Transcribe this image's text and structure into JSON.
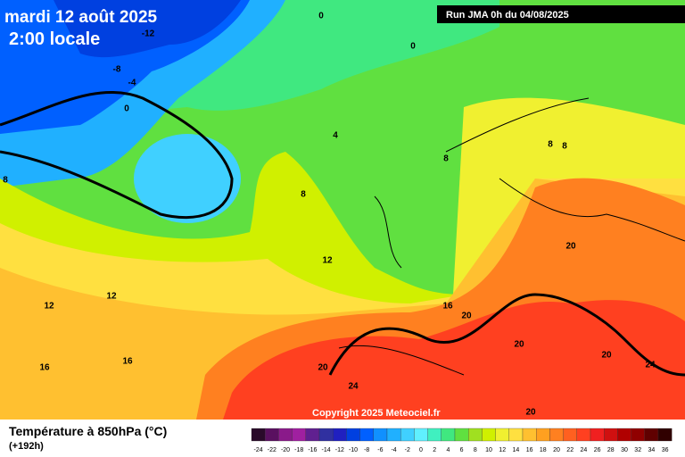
{
  "header": {
    "title": "mardi 12 août 2025",
    "time": "2:00 locale",
    "run": "Run JMA 0h du 04/08/2025",
    "copyright": "Copyright 2025 Meteociel.fr"
  },
  "legend": {
    "title": "Température à 850hPa (°C)",
    "lead": "(+192h)",
    "labels": [
      -24,
      -22,
      -20,
      -18,
      -16,
      -14,
      -12,
      -10,
      -8,
      -6,
      -4,
      -2,
      0,
      2,
      4,
      6,
      8,
      10,
      12,
      14,
      16,
      18,
      20,
      22,
      24,
      26,
      28,
      30,
      32,
      34,
      36
    ],
    "colors": [
      "#2a0a2a",
      "#5a1060",
      "#8a1a8a",
      "#a020a0",
      "#602090",
      "#3030a0",
      "#2020c0",
      "#0040e0",
      "#0060ff",
      "#1090ff",
      "#20b0ff",
      "#40d0ff",
      "#60f0ff",
      "#40f0c0",
      "#40e880",
      "#60e040",
      "#a0e020",
      "#d0f000",
      "#f0f030",
      "#ffe040",
      "#ffc030",
      "#ffa020",
      "#ff8020",
      "#ff6020",
      "#ff4020",
      "#f02020",
      "#d01010",
      "#b00000",
      "#900000",
      "#600000",
      "#300000"
    ]
  },
  "map": {
    "contour_labels": [
      0,
      0,
      -12,
      -8,
      -4,
      0,
      4,
      8,
      8,
      8,
      8,
      8,
      12,
      12,
      12,
      16,
      16,
      16,
      20,
      20,
      20,
      20,
      20,
      20,
      24,
      24
    ]
  }
}
